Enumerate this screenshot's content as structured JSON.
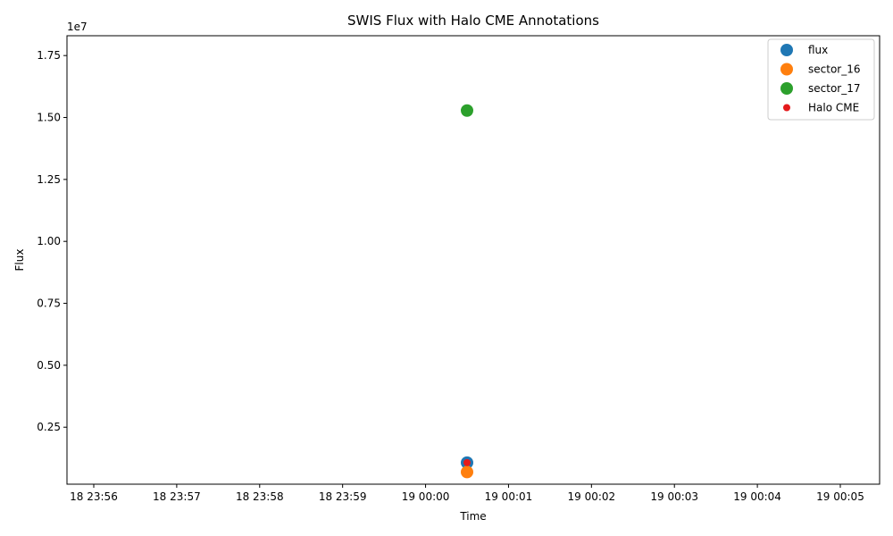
{
  "chart_data": {
    "type": "scatter",
    "title": "SWIS Flux with Halo CME Annotations",
    "xlabel": "Time",
    "ylabel": "Flux",
    "y_offset_label": "1e7",
    "x_ticks": [
      "18 23:56",
      "18 23:57",
      "18 23:58",
      "18 23:59",
      "19 00:00",
      "19 00:01",
      "19 00:02",
      "19 00:03",
      "19 00:04",
      "19 00:05"
    ],
    "y_ticks": [
      "0.25",
      "0.50",
      "0.75",
      "1.00",
      "1.25",
      "1.50",
      "1.75"
    ],
    "legend_position": "top-right",
    "series": [
      {
        "name": "flux",
        "color": "#1f77b4",
        "marker": "large",
        "points": [
          {
            "x": "19 00:00:30",
            "y": 1070000
          }
        ]
      },
      {
        "name": "sector_16",
        "color": "#ff7f0e",
        "marker": "large",
        "points": [
          {
            "x": "19 00:00:30",
            "y": 690000
          }
        ]
      },
      {
        "name": "sector_17",
        "color": "#2ca02c",
        "marker": "large",
        "points": [
          {
            "x": "19 00:00:30",
            "y": 15280000
          }
        ]
      },
      {
        "name": "Halo CME",
        "color": "#e41a1c",
        "marker": "small",
        "points": [
          {
            "x": "19 00:00:30",
            "y": 1070000
          }
        ]
      }
    ]
  }
}
